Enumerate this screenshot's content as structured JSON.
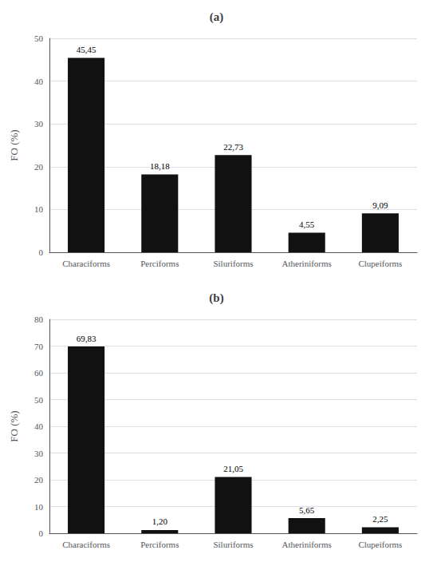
{
  "chart_data": [
    {
      "type": "bar",
      "title": "(a)",
      "categories": [
        "Characiforms",
        "Perciforms",
        "Siluriforms",
        "Atheriniforms",
        "Clupeiforms"
      ],
      "values": [
        45.45,
        18.18,
        22.73,
        4.55,
        9.09
      ],
      "value_labels": [
        "45,45",
        "18,18",
        "22,73",
        "4,55",
        "9,09"
      ],
      "data_labels": true,
      "color": "#111111",
      "ylabel": "FO (%)",
      "ylim": [
        0,
        50
      ],
      "yticks": [
        0,
        10,
        20,
        30,
        40,
        50
      ],
      "grid": true
    },
    {
      "type": "bar",
      "title": "(b)",
      "categories": [
        "Characiforms",
        "Perciforms",
        "Siluriforms",
        "Atheriniforms",
        "Clupeiforms"
      ],
      "values": [
        69.83,
        1.2,
        21.05,
        5.65,
        2.25
      ],
      "value_labels": [
        "69,83",
        "1,20",
        "21,05",
        "5,65",
        "2,25"
      ],
      "data_labels": true,
      "color": "#111111",
      "ylabel": "FO (%)",
      "ylim": [
        0,
        80
      ],
      "yticks": [
        0,
        10,
        20,
        30,
        40,
        50,
        60,
        70,
        80
      ],
      "grid": true
    }
  ]
}
